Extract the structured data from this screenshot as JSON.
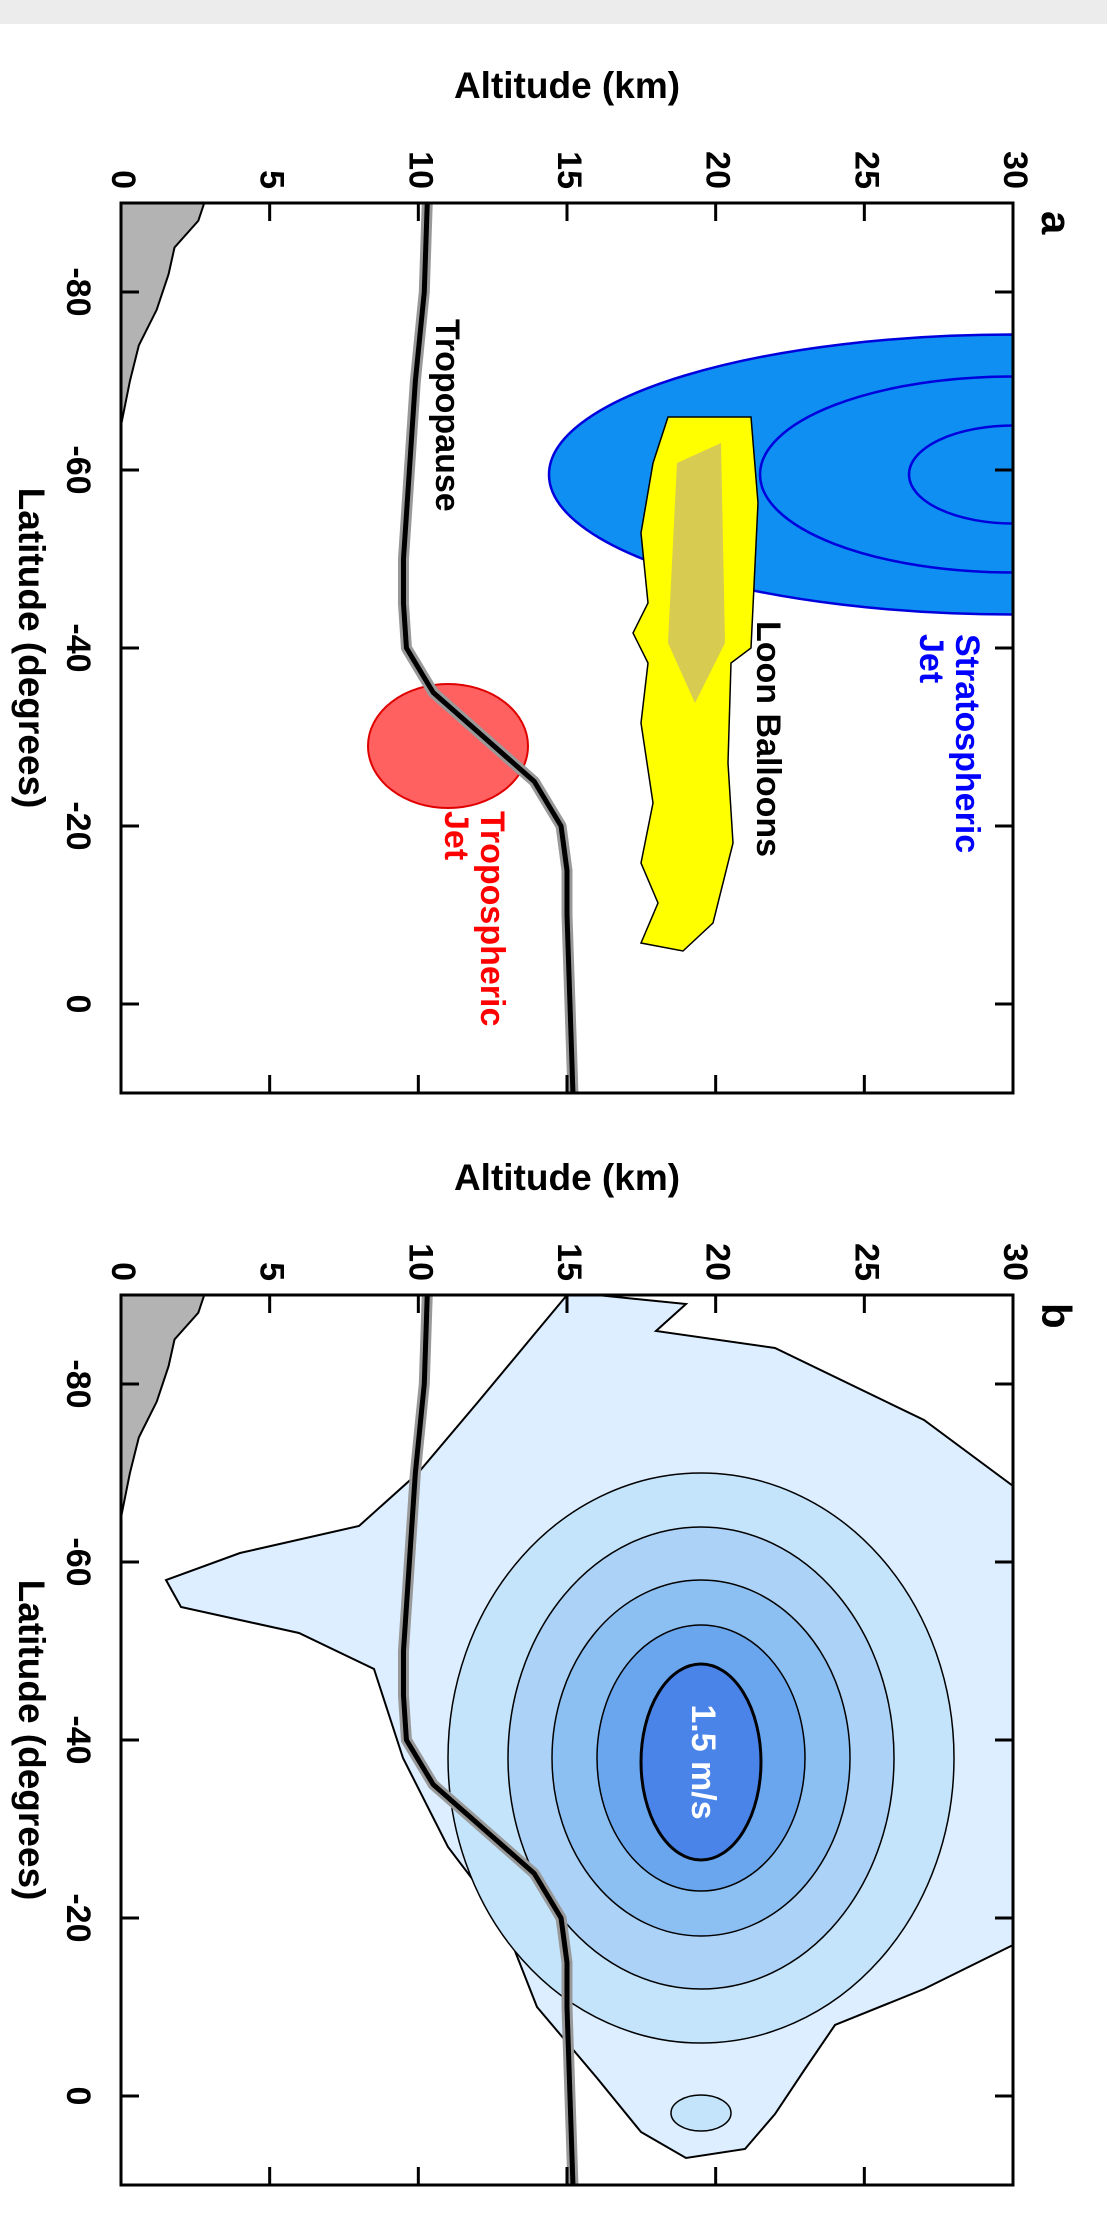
{
  "chart_data": [
    {
      "type": "line",
      "title": "a",
      "x_label": "Latitude (degrees)",
      "y_label": "Altitude (km)",
      "xlim": [
        -90,
        10
      ],
      "ylim": [
        0,
        30
      ],
      "xticks": [
        -80,
        -60,
        -40,
        -20,
        0
      ],
      "yticks": [
        0,
        5,
        10,
        15,
        20,
        25,
        30
      ],
      "series": [
        {
          "name": "Tropopause",
          "type": "line",
          "color": "#000000",
          "x": [
            -90,
            -80,
            -70,
            -60,
            -50,
            -45,
            -40,
            -35,
            -30,
            -25,
            -20,
            -15,
            -10,
            0,
            10
          ],
          "values": [
            10.3,
            10.2,
            9.9,
            9.7,
            9.5,
            9.5,
            9.6,
            10.5,
            12.2,
            13.9,
            14.8,
            15.0,
            15.0,
            15.1,
            15.2
          ]
        },
        {
          "type": "area",
          "color": "#b3b3b3",
          "x": [
            -90,
            -88,
            -85,
            -82,
            -78,
            -74,
            -70,
            -65
          ],
          "values": [
            2.8,
            2.6,
            1.8,
            1.6,
            1.2,
            0.6,
            0.3,
            0
          ]
        }
      ],
      "annotations": [
        {
          "lines": [
            "Stratospheric",
            "Jet"
          ],
          "color": "#0000ff"
        },
        {
          "lines": [
            "Loon Balloons"
          ],
          "color": "#000000"
        },
        {
          "lines": [
            "Tropospheric",
            "Jet"
          ],
          "color": "#ff0000"
        }
      ]
    },
    {
      "type": "line",
      "title": "b",
      "x_label": "Latitude (degrees)",
      "y_label": "Altitude (km)",
      "xlim": [
        -90,
        10
      ],
      "ylim": [
        0,
        30
      ],
      "xticks": [
        -80,
        -60,
        -40,
        -20,
        0
      ],
      "yticks": [
        0,
        5,
        10,
        15,
        20,
        25,
        30
      ],
      "series": [
        {
          "type": "line",
          "color": "#000000",
          "x": [
            -90,
            -80,
            -70,
            -60,
            -50,
            -45,
            -40,
            -35,
            -30,
            -25,
            -20,
            -15,
            -10,
            0,
            10
          ],
          "values": [
            10.3,
            10.2,
            9.9,
            9.7,
            9.5,
            9.5,
            9.6,
            10.5,
            12.2,
            13.9,
            14.8,
            15.0,
            15.0,
            15.1,
            15.2
          ]
        },
        {
          "type": "area",
          "color": "#b3b3b3",
          "x": [
            -90,
            -88,
            -85,
            -82,
            -78,
            -74,
            -70,
            -65
          ],
          "values": [
            2.8,
            2.6,
            1.8,
            1.6,
            1.2,
            0.6,
            0.3,
            0
          ]
        }
      ],
      "annotations": [
        {
          "lines": [
            "1.5 m/s"
          ],
          "color": "#ffffff"
        }
      ]
    }
  ]
}
